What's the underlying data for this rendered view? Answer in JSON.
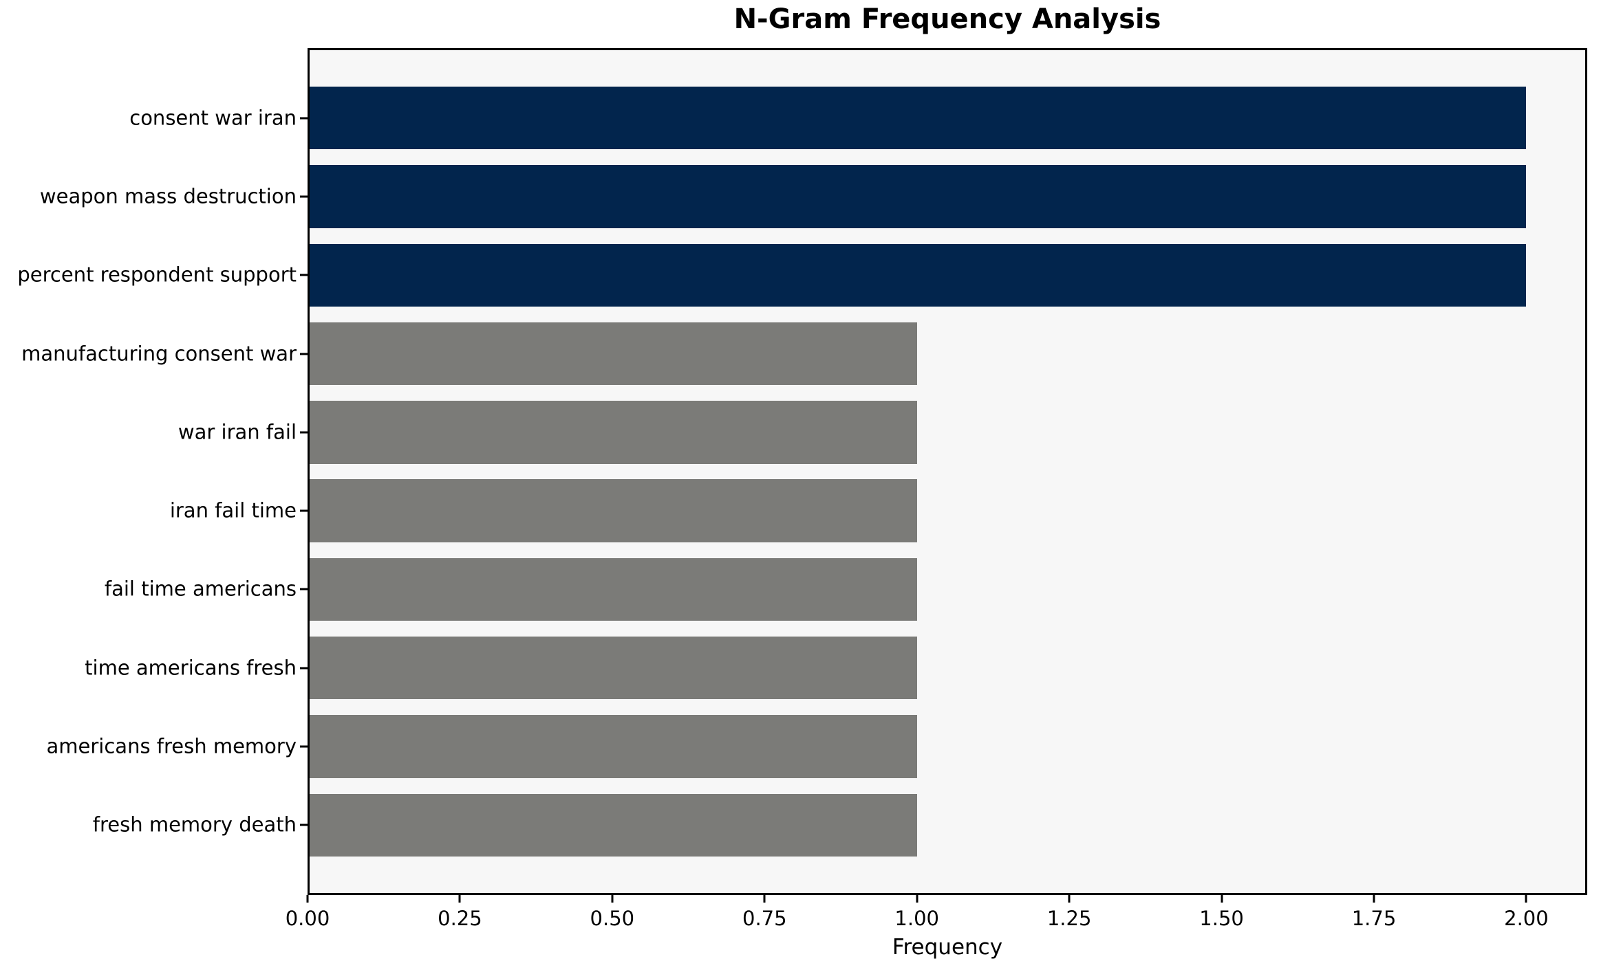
{
  "chart_data": {
    "type": "bar",
    "orientation": "horizontal",
    "title": "N-Gram Frequency Analysis",
    "xlabel": "Frequency",
    "ylabel": "",
    "categories": [
      "consent war iran",
      "weapon mass destruction",
      "percent respondent support",
      "manufacturing consent war",
      "war iran fail",
      "iran fail time",
      "fail time americans",
      "time americans fresh",
      "americans fresh memory",
      "fresh memory death"
    ],
    "values": [
      2,
      2,
      2,
      1,
      1,
      1,
      1,
      1,
      1,
      1
    ],
    "xlim": [
      0,
      2.1
    ],
    "x_tick_values": [
      0,
      0.25,
      0.5,
      0.75,
      1,
      1.25,
      1.5,
      1.75,
      2
    ],
    "x_tick_labels": [
      "0.00",
      "0.25",
      "0.50",
      "0.75",
      "1.00",
      "1.25",
      "1.50",
      "1.75",
      "2.00"
    ],
    "grid": false,
    "legend_position": "none",
    "colors": {
      "highlight_bar": "#02254D",
      "default_bar": "#7B7B78",
      "plot_background": "#F7F7F7",
      "figure_background": "#FFFFFF",
      "spine": "#000000",
      "text": "#000000"
    },
    "bar_color_keys": [
      "highlight_bar",
      "highlight_bar",
      "highlight_bar",
      "default_bar",
      "default_bar",
      "default_bar",
      "default_bar",
      "default_bar",
      "default_bar",
      "default_bar"
    ]
  }
}
